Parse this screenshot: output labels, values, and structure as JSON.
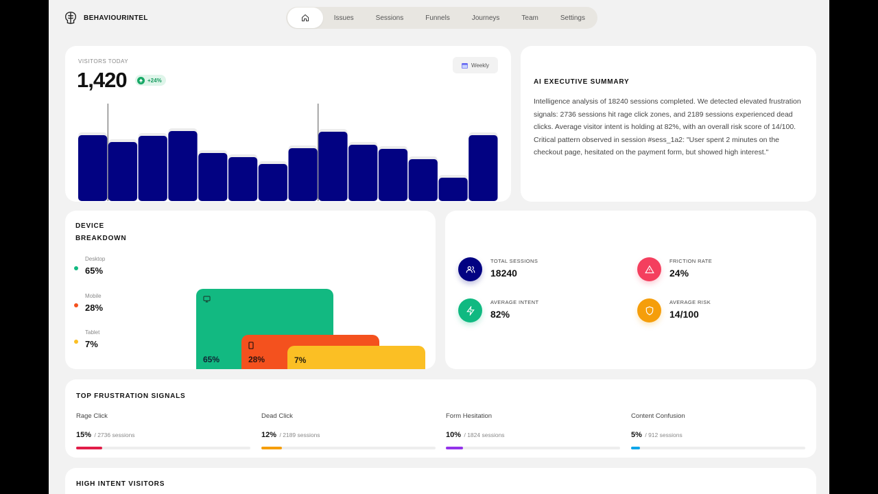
{
  "header": {
    "brand": "BEHAVIOURINTEL",
    "brand_icon": "brain-icon",
    "nav": {
      "home_icon": "home-icon",
      "items": [
        "Issues",
        "Sessions",
        "Funnels",
        "Journeys",
        "Team",
        "Settings"
      ]
    }
  },
  "visitors": {
    "label": "VISITORS TODAY",
    "value": "1,420",
    "change": "+24%",
    "range_button": "Weekly",
    "bar_color": "#020282",
    "chart_data": {
      "type": "bar",
      "values": [
        96,
        86,
        95,
        102,
        70,
        64,
        54,
        77,
        101,
        82,
        76,
        61,
        34,
        96
      ],
      "ylim": [
        0,
        140
      ]
    }
  },
  "ai_summary": {
    "title": "AI EXECUTIVE SUMMARY",
    "text": "Intelligence analysis of 18240 sessions completed. We detected elevated frustration signals: 2736 sessions hit rage click zones, and 2189 sessions experienced dead clicks. Average visitor intent is holding at 82%, with an overall risk score of 14/100. Critical pattern observed in session #sess_1a2: \"User spent 2 minutes on the checkout page, hesitated on the payment form, but showed high interest.\""
  },
  "devices": {
    "title": "DEVICE BREAKDOWN",
    "items": [
      {
        "name": "Desktop",
        "value": "65%",
        "share": 65,
        "color": "#12b981",
        "icon": "desktop-icon"
      },
      {
        "name": "Mobile",
        "value": "28%",
        "share": 28,
        "color": "#f4511e",
        "icon": "phone-icon"
      },
      {
        "name": "Tablet",
        "value": "7%",
        "share": 7,
        "color": "#fbbf24",
        "icon": ""
      }
    ]
  },
  "stats": [
    {
      "label": "TOTAL SESSIONS",
      "value": "18240",
      "color": "#020282",
      "icon": "users-icon"
    },
    {
      "label": "FRICTION RATE",
      "value": "24%",
      "color": "#f43f5e",
      "icon": "warning-icon"
    },
    {
      "label": "AVERAGE INTENT",
      "value": "82%",
      "color": "#10b981",
      "icon": "lightning-icon"
    },
    {
      "label": "AVERAGE RISK",
      "value": "14/100",
      "color": "#f59e0b",
      "icon": "shield-icon"
    }
  ],
  "frustration": {
    "title": "TOP FRUSTRATION SIGNALS",
    "signals": [
      {
        "name": "Rage Click",
        "pct": "15%",
        "count": "/ 2736 sessions",
        "progress": 15,
        "color": "#e11d48"
      },
      {
        "name": "Dead Click",
        "pct": "12%",
        "count": "/ 2189 sessions",
        "progress": 12,
        "color": "#f59e0b"
      },
      {
        "name": "Form Hesitation",
        "pct": "10%",
        "count": "/ 1824 sessions",
        "progress": 10,
        "color": "#9333ea"
      },
      {
        "name": "Content Confusion",
        "pct": "5%",
        "count": "/ 912 sessions",
        "progress": 5,
        "color": "#0ea5e9"
      }
    ]
  },
  "high_intent": {
    "title": "HIGH INTENT VISITORS"
  }
}
